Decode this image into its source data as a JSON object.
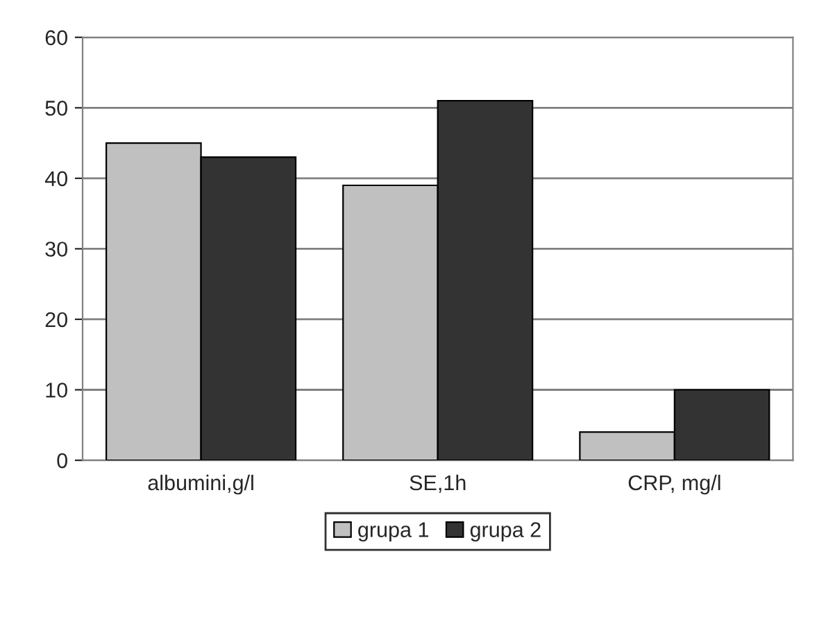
{
  "chart_data": {
    "type": "bar",
    "categories": [
      "albumini,g/l",
      "SE,1h",
      "CRP, mg/l"
    ],
    "series": [
      {
        "name": "grupa 1",
        "color": "#c0c0c0",
        "values": [
          45,
          39,
          4
        ]
      },
      {
        "name": "grupa 2",
        "color": "#333333",
        "values": [
          43,
          51,
          10
        ]
      }
    ],
    "ylim": [
      0,
      60
    ],
    "yticks": [
      0,
      10,
      20,
      30,
      40,
      50,
      60
    ],
    "grid": "y",
    "legend": "bottom"
  }
}
